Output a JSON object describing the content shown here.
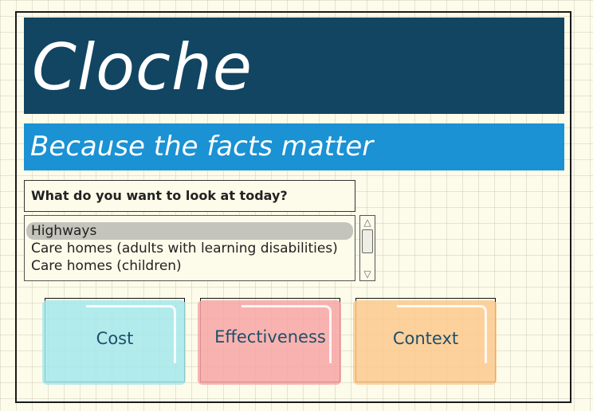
{
  "header": {
    "title": "Cloche",
    "subtitle": "Because the facts matter"
  },
  "prompt": {
    "question": "What do you want to look at today?"
  },
  "list": {
    "items": [
      "Highways",
      "Care homes (adults with learning disabilities)",
      "Care homes (children)"
    ],
    "selected": "Highways"
  },
  "cards": {
    "cost": "Cost",
    "effectiveness": "Effectiveness",
    "context": "Context"
  },
  "colors": {
    "title_bg": "#124562",
    "subtitle_bg": "#1a92d4",
    "cost": "#a4e8ec",
    "effectiveness": "#f7a6a6",
    "context": "#fbc98e"
  },
  "icons": {
    "scroll_up": "triangle-up-icon",
    "scroll_down": "triangle-down-icon"
  }
}
